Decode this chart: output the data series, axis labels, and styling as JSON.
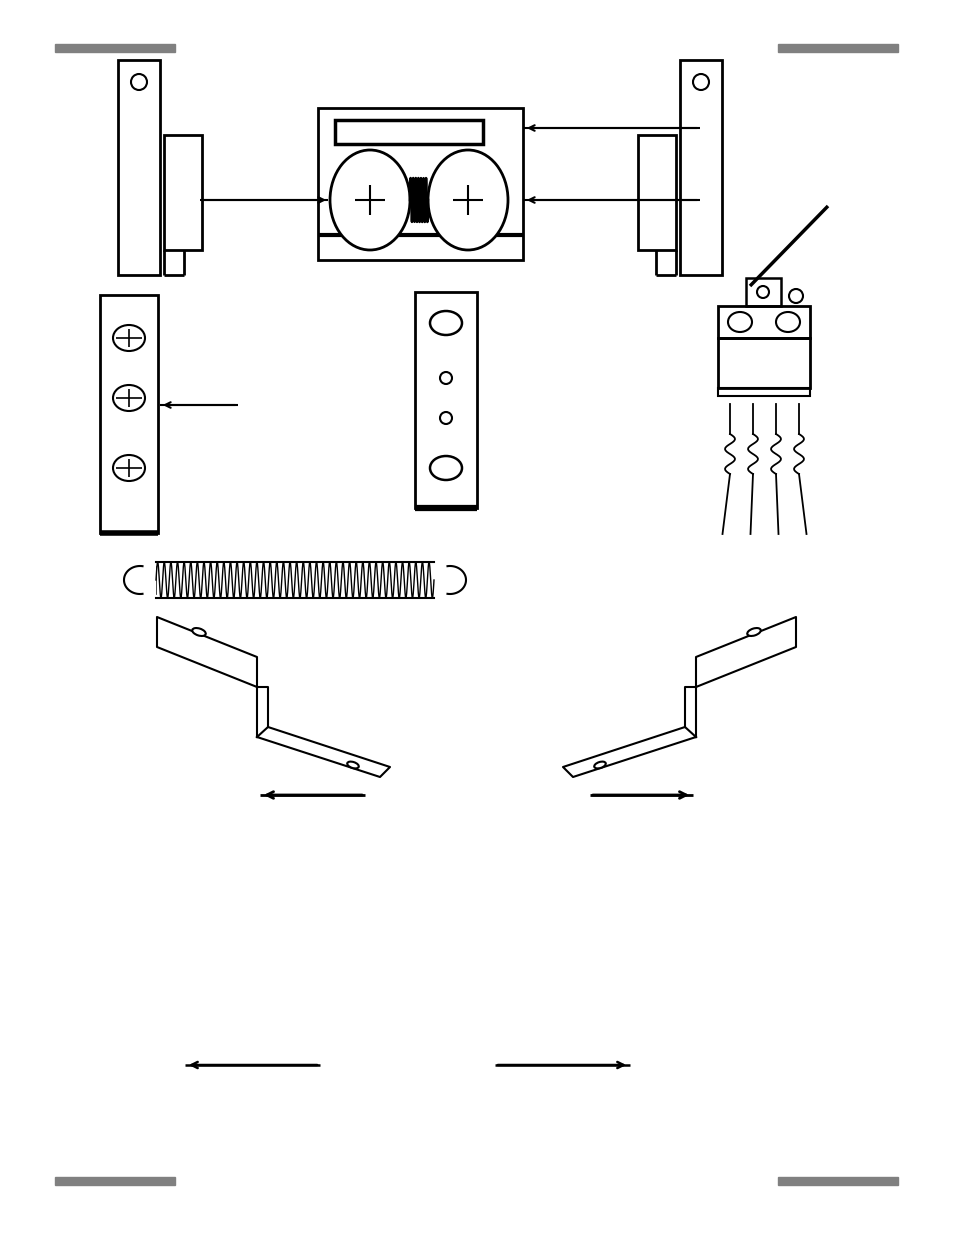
{
  "bg_color": "#ffffff",
  "gray_bar_color": "#808080",
  "figsize": [
    9.54,
    12.35
  ],
  "dpi": 100
}
